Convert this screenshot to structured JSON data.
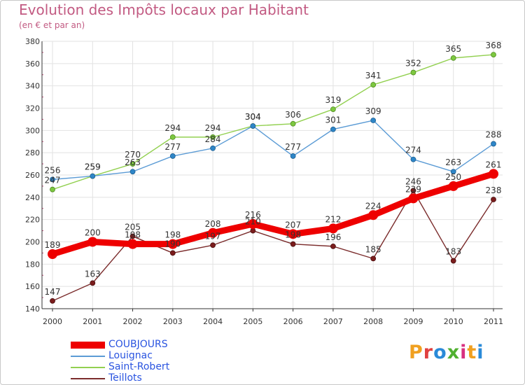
{
  "header": {
    "title": "Evolution des Impôts locaux par Habitant",
    "subtitle": "(en € et par an)"
  },
  "logo": {
    "text": "Proxiti",
    "colors": [
      "#f0a020",
      "#e04040",
      "#2a8ad8",
      "#50b030",
      "#d83080",
      "#f0a020",
      "#2a8ad8"
    ]
  },
  "chart_data": {
    "type": "line",
    "title": "Evolution des Impôts locaux par Habitant",
    "subtitle": "(en € et par an)",
    "xlabel": "",
    "ylabel": "",
    "x": [
      "2000",
      "2001",
      "2002",
      "2003",
      "2004",
      "2005",
      "2006",
      "2007",
      "2008",
      "2009",
      "2010",
      "2011"
    ],
    "ylim": [
      140,
      380
    ],
    "yticks": [
      140,
      160,
      180,
      200,
      220,
      240,
      260,
      280,
      300,
      320,
      340,
      360,
      380
    ],
    "grid": true,
    "legend_position": "bottom-left",
    "series": [
      {
        "name": "COUBJOURS",
        "color": "#ee0000",
        "values": [
          189,
          200,
          198,
          198,
          208,
          216,
          207,
          212,
          224,
          239,
          250,
          261
        ],
        "labels": [
          "189",
          "200",
          "198",
          "198",
          "208",
          "216",
          "207",
          "212",
          "224",
          "239",
          "250",
          "261"
        ]
      },
      {
        "name": "Louignac",
        "color": "#5b9bd5",
        "values": [
          256,
          259,
          263,
          277,
          284,
          304,
          277,
          301,
          309,
          274,
          263,
          288
        ],
        "labels": [
          "256",
          "259",
          "263",
          "277",
          "284",
          "304",
          "277",
          "301",
          "309",
          "274",
          "263",
          "288"
        ]
      },
      {
        "name": "Saint-Robert",
        "color": "#92d050",
        "values": [
          247,
          259,
          270,
          294,
          294,
          304,
          306,
          319,
          341,
          352,
          365,
          368
        ],
        "labels": [
          "247",
          "259",
          "270",
          "294",
          "294",
          "304",
          "306",
          "319",
          "341",
          "352",
          "365",
          "368"
        ]
      },
      {
        "name": "Teillots",
        "color": "#7b2c2c",
        "values": [
          147,
          163,
          205,
          190,
          197,
          210,
          198,
          196,
          185,
          246,
          183,
          238
        ],
        "labels": [
          "147",
          "163",
          "205",
          "190",
          "197",
          "210",
          "198",
          "196",
          "185",
          "246",
          "183",
          "238"
        ]
      }
    ]
  }
}
